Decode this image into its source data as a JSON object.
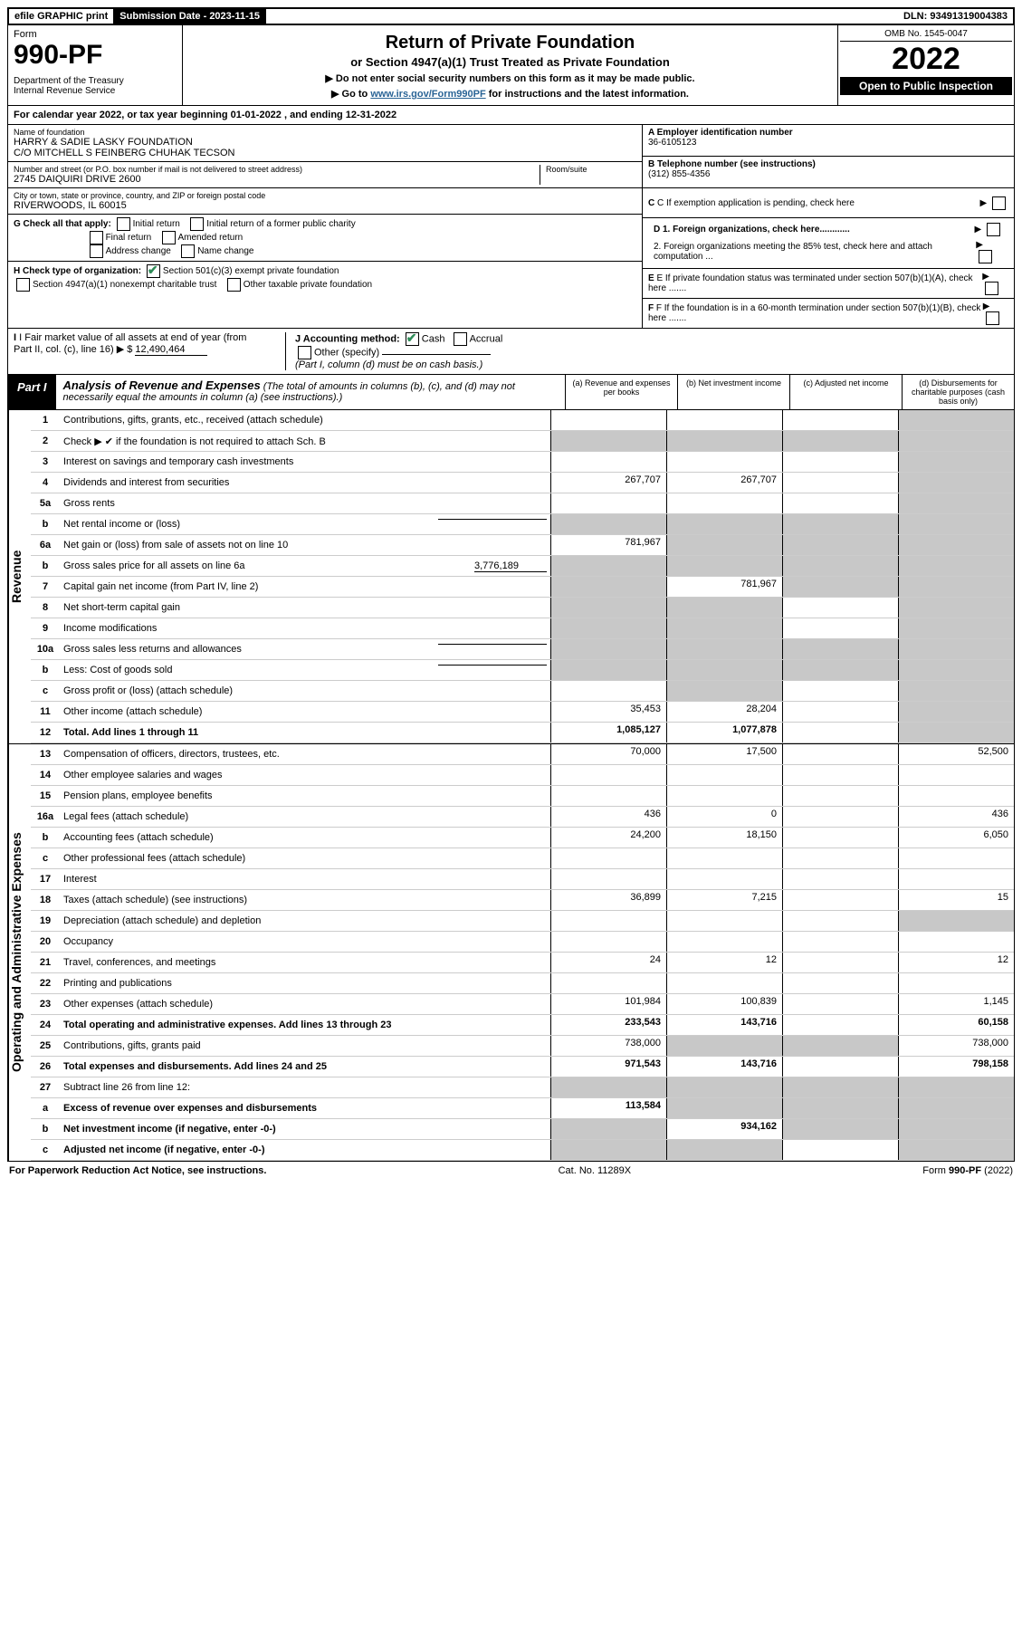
{
  "top_bar": {
    "efile": "efile GRAPHIC print",
    "sub_date_label": "Submission Date - 2023-11-15",
    "dln": "DLN: 93491319004383"
  },
  "header": {
    "form_label": "Form",
    "form_name": "990-PF",
    "dept": "Department of the Treasury\nInternal Revenue Service",
    "title": "Return of Private Foundation",
    "subtitle": "or Section 4947(a)(1) Trust Treated as Private Foundation",
    "note1": "▶ Do not enter social security numbers on this form as it may be made public.",
    "note2_pre": "▶ Go to ",
    "note2_link": "www.irs.gov/Form990PF",
    "note2_post": " for instructions and the latest information.",
    "omb": "OMB No. 1545-0047",
    "year": "2022",
    "open_pub": "Open to Public Inspection"
  },
  "cal_year": "For calendar year 2022, or tax year beginning 01-01-2022            , and ending 12-31-2022",
  "info": {
    "name_label": "Name of foundation",
    "name": "HARRY & SADIE LASKY FOUNDATION\nC/O MITCHELL S FEINBERG CHUHAK TECSON",
    "addr_label": "Number and street (or P.O. box number if mail is not delivered to street address)",
    "addr": "2745 DAIQUIRI DRIVE 2600",
    "room_label": "Room/suite",
    "city_label": "City or town, state or province, country, and ZIP or foreign postal code",
    "city": "RIVERWOODS, IL  60015",
    "ein_label": "A Employer identification number",
    "ein": "36-6105123",
    "phone_label": "B Telephone number (see instructions)",
    "phone": "(312) 855-4356",
    "c_label": "C If exemption application is pending, check here",
    "d1_label": "D 1. Foreign organizations, check here............",
    "d2_label": "2. Foreign organizations meeting the 85% test, check here and attach computation ...",
    "e_label": "E  If private foundation status was terminated under section 507(b)(1)(A), check here .......",
    "f_label": "F  If the foundation is in a 60-month termination under section 507(b)(1)(B), check here .......",
    "g_label": "G Check all that apply:",
    "g_opts": [
      "Initial return",
      "Initial return of a former public charity",
      "Final return",
      "Amended return",
      "Address change",
      "Name change"
    ],
    "h_label": "H Check type of organization:",
    "h_opts": [
      "Section 501(c)(3) exempt private foundation",
      "Section 4947(a)(1) nonexempt charitable trust",
      "Other taxable private foundation"
    ],
    "i_label": "I Fair market value of all assets at end of year (from Part II, col. (c), line 16) ▶ $",
    "i_val": "12,490,464",
    "j_label": "J Accounting method:",
    "j_opts": [
      "Cash",
      "Accrual",
      "Other (specify)"
    ],
    "j_note": "(Part I, column (d) must be on cash basis.)"
  },
  "part1": {
    "label": "Part I",
    "title": "Analysis of Revenue and Expenses",
    "title_note": "(The total of amounts in columns (b), (c), and (d) may not necessarily equal the amounts in column (a) (see instructions).)",
    "col_a": "(a)  Revenue and expenses per books",
    "col_b": "(b)  Net investment income",
    "col_c": "(c)  Adjusted net income",
    "col_d": "(d)  Disbursements for charitable purposes (cash basis only)"
  },
  "side_labels": {
    "revenue": "Revenue",
    "expenses": "Operating and Administrative Expenses"
  },
  "rows": [
    {
      "num": "1",
      "label": "Contributions, gifts, grants, etc., received (attach schedule)",
      "cells": [
        "",
        "",
        "",
        ""
      ],
      "shade": [
        false,
        false,
        false,
        true
      ]
    },
    {
      "num": "2",
      "label": "Check ▶ ✔ if the foundation is not required to attach Sch. B",
      "cells": [
        "",
        "",
        "",
        ""
      ],
      "shade": [
        true,
        true,
        true,
        true
      ]
    },
    {
      "num": "3",
      "label": "Interest on savings and temporary cash investments",
      "cells": [
        "",
        "",
        "",
        ""
      ],
      "shade": [
        false,
        false,
        false,
        true
      ]
    },
    {
      "num": "4",
      "label": "Dividends and interest from securities",
      "cells": [
        "267,707",
        "267,707",
        "",
        ""
      ],
      "shade": [
        false,
        false,
        false,
        true
      ]
    },
    {
      "num": "5a",
      "label": "Gross rents",
      "cells": [
        "",
        "",
        "",
        ""
      ],
      "shade": [
        false,
        false,
        false,
        true
      ]
    },
    {
      "num": "b",
      "label": "Net rental income or (loss)",
      "cells": [
        "",
        "",
        "",
        ""
      ],
      "shade": [
        true,
        true,
        true,
        true
      ],
      "inline_blank": true
    },
    {
      "num": "6a",
      "label": "Net gain or (loss) from sale of assets not on line 10",
      "cells": [
        "781,967",
        "",
        "",
        ""
      ],
      "shade": [
        false,
        true,
        true,
        true
      ]
    },
    {
      "num": "b",
      "label": "Gross sales price for all assets on line 6a",
      "cells": [
        "",
        "",
        "",
        ""
      ],
      "shade": [
        true,
        true,
        true,
        true
      ],
      "inline_val": "3,776,189"
    },
    {
      "num": "7",
      "label": "Capital gain net income (from Part IV, line 2)",
      "cells": [
        "",
        "781,967",
        "",
        ""
      ],
      "shade": [
        true,
        false,
        true,
        true
      ]
    },
    {
      "num": "8",
      "label": "Net short-term capital gain",
      "cells": [
        "",
        "",
        "",
        ""
      ],
      "shade": [
        true,
        true,
        false,
        true
      ]
    },
    {
      "num": "9",
      "label": "Income modifications",
      "cells": [
        "",
        "",
        "",
        ""
      ],
      "shade": [
        true,
        true,
        false,
        true
      ]
    },
    {
      "num": "10a",
      "label": "Gross sales less returns and allowances",
      "cells": [
        "",
        "",
        "",
        ""
      ],
      "shade": [
        true,
        true,
        true,
        true
      ],
      "inline_blank": true
    },
    {
      "num": "b",
      "label": "Less: Cost of goods sold",
      "cells": [
        "",
        "",
        "",
        ""
      ],
      "shade": [
        true,
        true,
        true,
        true
      ],
      "inline_blank": true
    },
    {
      "num": "c",
      "label": "Gross profit or (loss) (attach schedule)",
      "cells": [
        "",
        "",
        "",
        ""
      ],
      "shade": [
        false,
        true,
        false,
        true
      ]
    },
    {
      "num": "11",
      "label": "Other income (attach schedule)",
      "cells": [
        "35,453",
        "28,204",
        "",
        ""
      ],
      "shade": [
        false,
        false,
        false,
        true
      ]
    },
    {
      "num": "12",
      "label": "Total. Add lines 1 through 11",
      "cells": [
        "1,085,127",
        "1,077,878",
        "",
        ""
      ],
      "shade": [
        false,
        false,
        false,
        true
      ],
      "bold": true
    }
  ],
  "exp_rows": [
    {
      "num": "13",
      "label": "Compensation of officers, directors, trustees, etc.",
      "cells": [
        "70,000",
        "17,500",
        "",
        "52,500"
      ]
    },
    {
      "num": "14",
      "label": "Other employee salaries and wages",
      "cells": [
        "",
        "",
        "",
        ""
      ]
    },
    {
      "num": "15",
      "label": "Pension plans, employee benefits",
      "cells": [
        "",
        "",
        "",
        ""
      ]
    },
    {
      "num": "16a",
      "label": "Legal fees (attach schedule)",
      "cells": [
        "436",
        "0",
        "",
        "436"
      ]
    },
    {
      "num": "b",
      "label": "Accounting fees (attach schedule)",
      "cells": [
        "24,200",
        "18,150",
        "",
        "6,050"
      ]
    },
    {
      "num": "c",
      "label": "Other professional fees (attach schedule)",
      "cells": [
        "",
        "",
        "",
        ""
      ]
    },
    {
      "num": "17",
      "label": "Interest",
      "cells": [
        "",
        "",
        "",
        ""
      ]
    },
    {
      "num": "18",
      "label": "Taxes (attach schedule) (see instructions)",
      "cells": [
        "36,899",
        "7,215",
        "",
        "15"
      ]
    },
    {
      "num": "19",
      "label": "Depreciation (attach schedule) and depletion",
      "cells": [
        "",
        "",
        "",
        ""
      ],
      "shade_d": true
    },
    {
      "num": "20",
      "label": "Occupancy",
      "cells": [
        "",
        "",
        "",
        ""
      ]
    },
    {
      "num": "21",
      "label": "Travel, conferences, and meetings",
      "cells": [
        "24",
        "12",
        "",
        "12"
      ]
    },
    {
      "num": "22",
      "label": "Printing and publications",
      "cells": [
        "",
        "",
        "",
        ""
      ]
    },
    {
      "num": "23",
      "label": "Other expenses (attach schedule)",
      "cells": [
        "101,984",
        "100,839",
        "",
        "1,145"
      ]
    },
    {
      "num": "24",
      "label": "Total operating and administrative expenses. Add lines 13 through 23",
      "cells": [
        "233,543",
        "143,716",
        "",
        "60,158"
      ],
      "bold": true
    },
    {
      "num": "25",
      "label": "Contributions, gifts, grants paid",
      "cells": [
        "738,000",
        "",
        "",
        "738,000"
      ],
      "shade_b": true,
      "shade_c": true
    },
    {
      "num": "26",
      "label": "Total expenses and disbursements. Add lines 24 and 25",
      "cells": [
        "971,543",
        "143,716",
        "",
        "798,158"
      ],
      "bold": true
    },
    {
      "num": "27",
      "label": "Subtract line 26 from line 12:",
      "cells": [
        "",
        "",
        "",
        ""
      ],
      "shade_all": true
    },
    {
      "num": "a",
      "label": "Excess of revenue over expenses and disbursements",
      "cells": [
        "113,584",
        "",
        "",
        ""
      ],
      "bold": true,
      "shade_b": true,
      "shade_c": true,
      "shade_d": true
    },
    {
      "num": "b",
      "label": "Net investment income (if negative, enter -0-)",
      "cells": [
        "",
        "934,162",
        "",
        ""
      ],
      "bold": true,
      "shade_a": true,
      "shade_c": true,
      "shade_d": true
    },
    {
      "num": "c",
      "label": "Adjusted net income (if negative, enter -0-)",
      "cells": [
        "",
        "",
        "",
        ""
      ],
      "bold": true,
      "shade_a": true,
      "shade_b": true,
      "shade_d": true
    }
  ],
  "footer": {
    "left": "For Paperwork Reduction Act Notice, see instructions.",
    "center": "Cat. No. 11289X",
    "right": "Form 990-PF (2022)"
  }
}
